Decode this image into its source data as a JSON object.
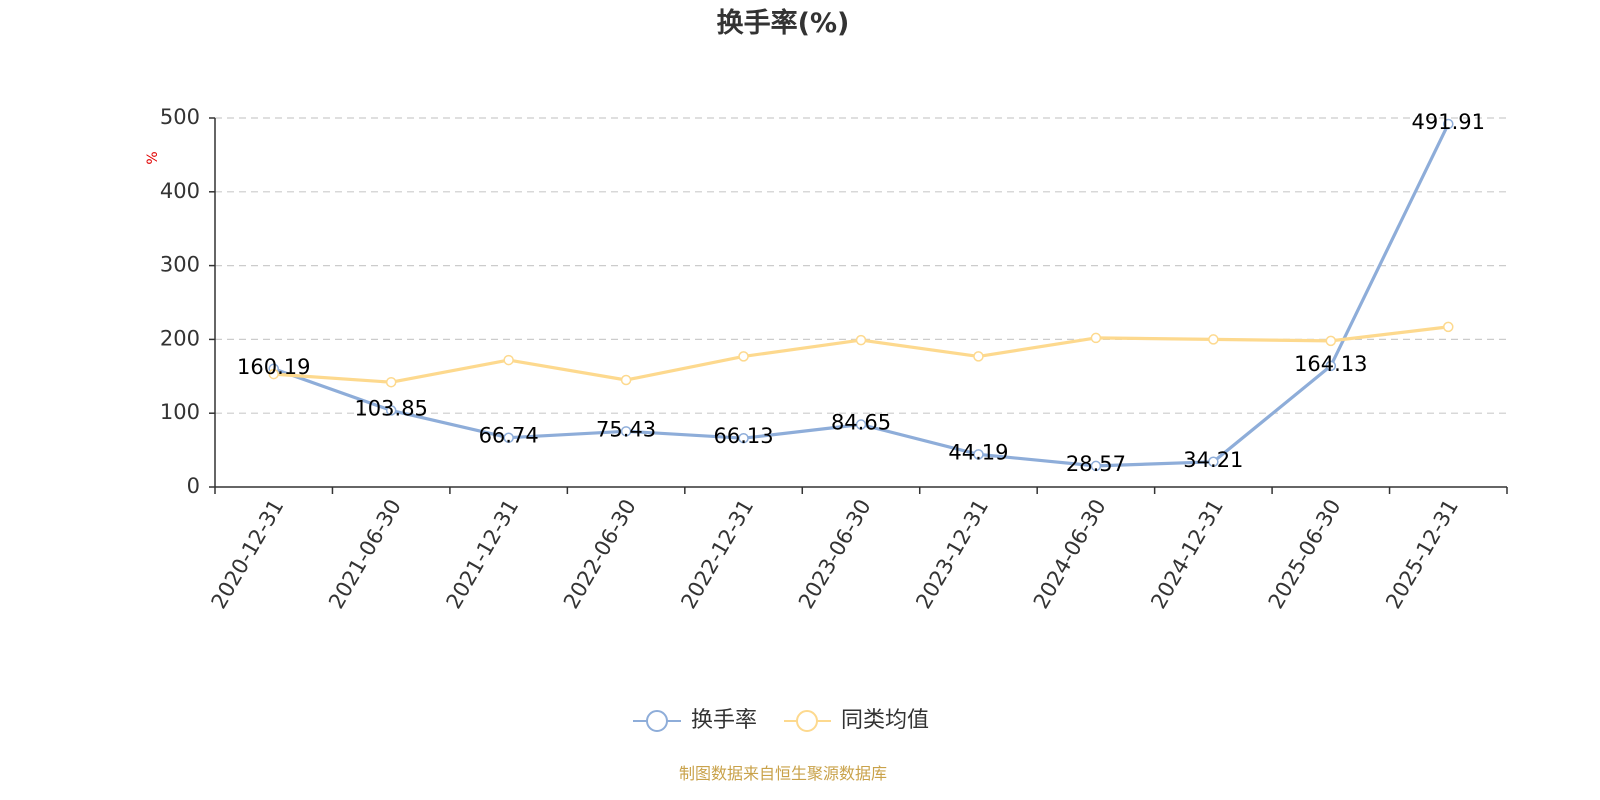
{
  "footer": "制图数据来自恒生聚源数据库",
  "colors": {
    "series": [
      "#8eadd9",
      "#fdd98e"
    ],
    "footer": "#c9a24a",
    "unit": "#e00000",
    "grid": "#cccccc",
    "axis": "#333333",
    "point_fill": "#ffffff"
  },
  "chart_data": {
    "type": "line",
    "title": "换手率(%)",
    "xlabel": "",
    "ylabel": "%",
    "categories": [
      "2020-12-31",
      "2021-06-30",
      "2021-12-31",
      "2022-06-30",
      "2022-12-31",
      "2023-06-30",
      "2023-12-31",
      "2024-06-30",
      "2024-12-31",
      "2025-06-30",
      "2025-12-31"
    ],
    "ylim": [
      0,
      500
    ],
    "yticks": [
      0,
      100,
      200,
      300,
      400,
      500
    ],
    "grid": true,
    "legend_position": "bottom-center",
    "series": [
      {
        "name": "换手率",
        "values": [
          160.19,
          103.85,
          66.74,
          75.43,
          66.13,
          84.65,
          44.19,
          28.57,
          34.21,
          164.13,
          491.91
        ],
        "data_labels": true
      },
      {
        "name": "同类均值",
        "values": [
          153,
          142,
          172,
          145,
          177,
          199,
          177,
          202,
          200,
          198,
          217
        ],
        "data_labels": false
      }
    ]
  }
}
